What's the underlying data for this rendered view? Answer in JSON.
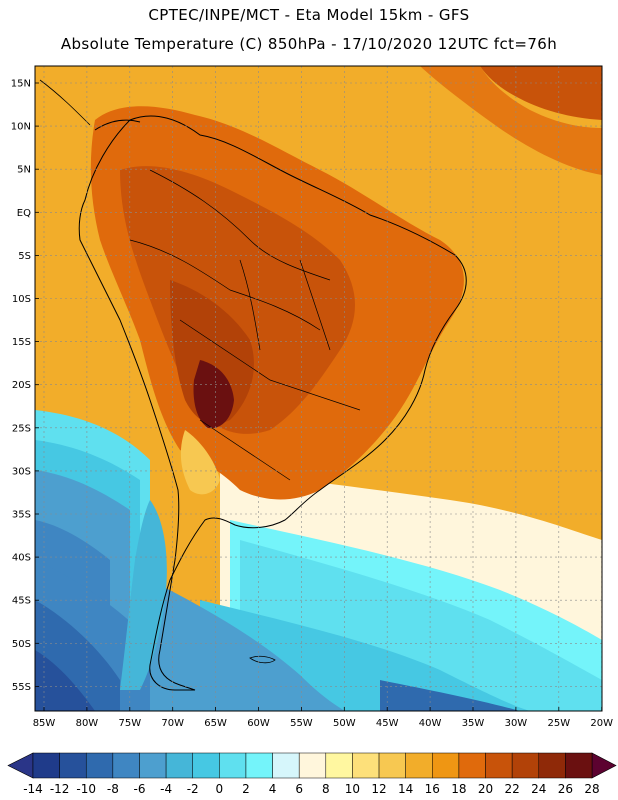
{
  "header": {
    "line1": "CPTEC/INPE/MCT -  Eta Model 15km - GFS",
    "line2": "Absolute Temperature (C) 850hPa - 17/10/2020 12UTC fct=76h"
  },
  "map": {
    "lat_labels": [
      "15N",
      "10N",
      "5N",
      "EQ",
      "5S",
      "10S",
      "15S",
      "20S",
      "25S",
      "30S",
      "35S",
      "40S",
      "45S",
      "50S",
      "55S"
    ],
    "lon_labels": [
      "85W",
      "80W",
      "75W",
      "70W",
      "65W",
      "60W",
      "55W",
      "50W",
      "45W",
      "40W",
      "35W",
      "30W",
      "25W",
      "20W"
    ]
  },
  "colorbar": {
    "labels": [
      "-14",
      "-12",
      "-10",
      "-8",
      "-6",
      "-4",
      "-2",
      "0",
      "2",
      "4",
      "6",
      "8",
      "10",
      "12",
      "14",
      "16",
      "18",
      "20",
      "22",
      "24",
      "26",
      "28"
    ],
    "colors": [
      "#1f3b8a",
      "#26519b",
      "#2f6aae",
      "#3f86c2",
      "#4d9fcf",
      "#45b6d8",
      "#46c8e3",
      "#5fe0ef",
      "#74f4fa",
      "#d6f6fb",
      "#fff6dc",
      "#fff7a0",
      "#fde07a",
      "#f7c851",
      "#f2ad2a",
      "#ef9613",
      "#e06a0c",
      "#c8530a",
      "#b24208",
      "#8f2908",
      "#6a1010"
    ],
    "under_color": "#2a3588",
    "over_color": "#5c0230"
  }
}
